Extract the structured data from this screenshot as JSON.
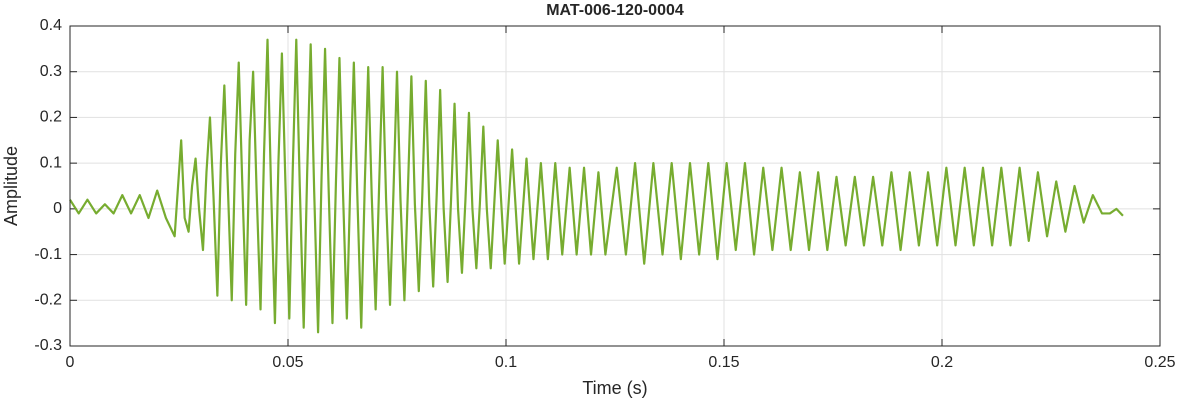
{
  "chart_data": {
    "type": "line",
    "title": "MAT-006-120-0004",
    "xlabel": "Time (s)",
    "ylabel": "Amplitude",
    "color": "#77ac30",
    "grid": true,
    "xlim": [
      0,
      0.25
    ],
    "xticks": [
      0,
      0.05,
      0.1,
      0.15,
      0.2,
      0.25
    ],
    "ylim": [
      -0.3,
      0.4
    ],
    "yticks": [
      -0.3,
      -0.2,
      -0.1,
      0,
      0.1,
      0.2,
      0.3,
      0.4
    ],
    "x": [
      0,
      0.002,
      0.004,
      0.006,
      0.008,
      0.01,
      0.012,
      0.014,
      0.016,
      0.018,
      0.02,
      0.022,
      0.024,
      0.0255,
      0.0263,
      0.0272,
      0.028,
      0.0288,
      0.0296,
      0.0305,
      0.0313,
      0.0321,
      0.0329,
      0.0338,
      0.0346,
      0.0354,
      0.0362,
      0.0371,
      0.0379,
      0.0387,
      0.0395,
      0.0404,
      0.0412,
      0.042,
      0.0428,
      0.0437,
      0.0445,
      0.0453,
      0.0461,
      0.047,
      0.0478,
      0.0486,
      0.0494,
      0.0503,
      0.0511,
      0.0519,
      0.0527,
      0.0536,
      0.0544,
      0.0552,
      0.056,
      0.0569,
      0.0577,
      0.0585,
      0.0593,
      0.0602,
      0.061,
      0.0618,
      0.0626,
      0.0635,
      0.0643,
      0.0651,
      0.0659,
      0.0668,
      0.0676,
      0.0684,
      0.0692,
      0.0701,
      0.0709,
      0.0717,
      0.0725,
      0.0734,
      0.0742,
      0.075,
      0.0758,
      0.0767,
      0.0775,
      0.0783,
      0.0791,
      0.08,
      0.0808,
      0.0816,
      0.0824,
      0.0833,
      0.0841,
      0.0849,
      0.0857,
      0.0866,
      0.0874,
      0.0882,
      0.089,
      0.0899,
      0.0907,
      0.0915,
      0.0923,
      0.0932,
      0.094,
      0.0948,
      0.0956,
      0.0965,
      0.0973,
      0.0981,
      0.0997,
      0.1014,
      0.103,
      0.1047,
      0.1063,
      0.108,
      0.1096,
      0.1113,
      0.1129,
      0.1146,
      0.1162,
      0.1179,
      0.1195,
      0.1212,
      0.1228,
      0.1254,
      0.1275,
      0.1296,
      0.1317,
      0.1338,
      0.1359,
      0.138,
      0.1401,
      0.1422,
      0.1443,
      0.1464,
      0.1485,
      0.1506,
      0.1527,
      0.1548,
      0.1569,
      0.159,
      0.1611,
      0.1632,
      0.1653,
      0.1674,
      0.1695,
      0.1716,
      0.1737,
      0.1758,
      0.1779,
      0.18,
      0.1821,
      0.1842,
      0.1863,
      0.1884,
      0.1905,
      0.1926,
      0.1947,
      0.1968,
      0.1989,
      0.201,
      0.2031,
      0.2052,
      0.2073,
      0.2094,
      0.2115,
      0.2136,
      0.2157,
      0.2178,
      0.2199,
      0.222,
      0.2241,
      0.2262,
      0.2283,
      0.2304,
      0.2325,
      0.2346,
      0.2367,
      0.2385,
      0.24,
      0.2415
    ],
    "values": [
      0.02,
      -0.01,
      0.02,
      -0.01,
      0.01,
      -0.01,
      0.03,
      -0.01,
      0.03,
      -0.02,
      0.04,
      -0.02,
      -0.06,
      0.15,
      -0.02,
      -0.05,
      0.05,
      0.11,
      0,
      -0.09,
      0.08,
      0.2,
      0.03,
      -0.19,
      0.1,
      0.27,
      0.05,
      -0.2,
      0.12,
      0.32,
      0.06,
      -0.21,
      0.15,
      0.3,
      0.04,
      -0.22,
      0.12,
      0.37,
      0.05,
      -0.25,
      0.1,
      0.34,
      0.06,
      -0.24,
      0.09,
      0.37,
      0.05,
      -0.26,
      0.08,
      0.36,
      0.04,
      -0.27,
      0.07,
      0.35,
      0.05,
      -0.25,
      0.06,
      0.33,
      0.04,
      -0.24,
      0.06,
      0.32,
      0.03,
      -0.26,
      0.05,
      0.31,
      0.03,
      -0.22,
      0.05,
      0.31,
      0.02,
      -0.21,
      0.04,
      0.3,
      0.02,
      -0.2,
      0.04,
      0.29,
      0.01,
      -0.18,
      0.03,
      0.28,
      0.01,
      -0.17,
      0.03,
      0.26,
      0,
      -0.16,
      0.02,
      0.23,
      0,
      -0.14,
      0.02,
      0.21,
      0,
      -0.13,
      0.01,
      0.18,
      0,
      -0.13,
      0.01,
      0.15,
      -0.12,
      0.13,
      -0.12,
      0.11,
      -0.11,
      0.1,
      -0.11,
      0.1,
      -0.1,
      0.09,
      -0.1,
      0.09,
      -0.1,
      0.08,
      -0.1,
      0.09,
      -0.1,
      0.1,
      -0.12,
      0.1,
      -0.1,
      0.1,
      -0.11,
      0.1,
      -0.1,
      0.1,
      -0.11,
      0.1,
      -0.09,
      0.1,
      -0.1,
      0.09,
      -0.09,
      0.09,
      -0.09,
      0.08,
      -0.09,
      0.08,
      -0.09,
      0.07,
      -0.08,
      0.07,
      -0.08,
      0.07,
      -0.08,
      0.08,
      -0.09,
      0.08,
      -0.08,
      0.08,
      -0.08,
      0.09,
      -0.08,
      0.09,
      -0.08,
      0.09,
      -0.08,
      0.09,
      -0.08,
      0.09,
      -0.07,
      0.08,
      -0.06,
      0.06,
      -0.05,
      0.05,
      -0.03,
      0.03,
      -0.01,
      -0.01,
      0,
      -0.015
    ]
  }
}
